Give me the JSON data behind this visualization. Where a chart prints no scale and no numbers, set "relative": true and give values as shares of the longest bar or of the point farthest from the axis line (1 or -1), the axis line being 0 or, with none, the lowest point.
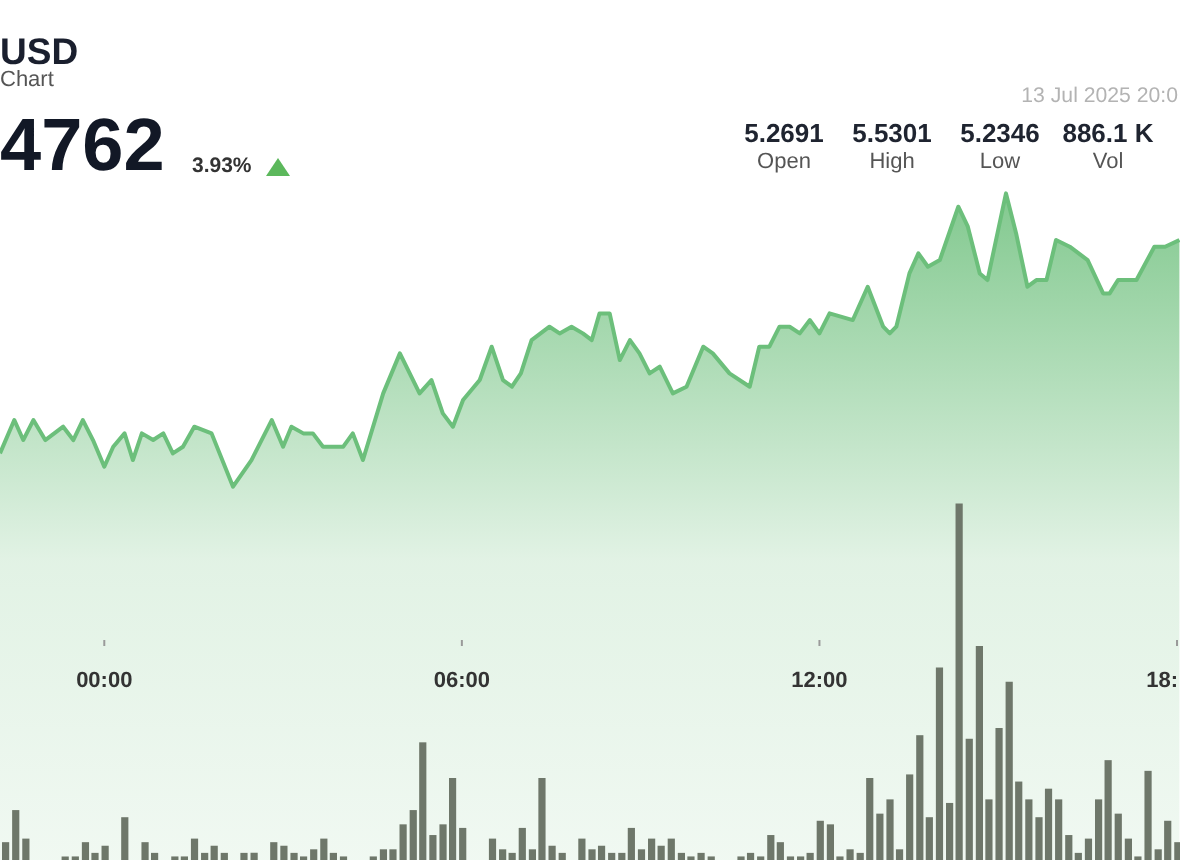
{
  "chart_data": {
    "type": "area",
    "title": "USD",
    "subtitle": "Chart",
    "annotations": [
      "4762",
      "3.93%",
      "13 Jul 2025 20:0",
      "5.2691",
      "Open",
      "5.5301",
      "High",
      "5.2346",
      "Low",
      "886.1 K",
      "Vol"
    ],
    "relative": true,
    "xlim": [
      -1.75,
      18.05
    ],
    "xticks": [
      {
        "value": 0,
        "label": "00:00"
      },
      {
        "value": 6,
        "label": "06:00"
      },
      {
        "value": 12,
        "label": "12:00"
      },
      {
        "value": 18,
        "label": "18:"
      }
    ],
    "series": [
      {
        "color": "#6cbf7b",
        "x": [
          -1.75,
          -1.51,
          -1.36,
          -1.19,
          -0.99,
          -0.69,
          -0.52,
          -0.36,
          -0.19,
          0,
          0.15,
          0.34,
          0.48,
          0.63,
          0.82,
          0.99,
          1.15,
          1.32,
          1.51,
          1.8,
          2.16,
          2.47,
          2.81,
          3,
          3.14,
          3.34,
          3.5,
          3.67,
          3.84,
          4.01,
          4.17,
          4.34,
          4.68,
          4.96,
          5.29,
          5.49,
          5.68,
          5.85,
          6.02,
          6.3,
          6.5,
          6.69,
          6.84,
          6.99,
          7.17,
          7.47,
          7.64,
          7.84,
          8.03,
          8.18,
          8.31,
          8.48,
          8.65,
          8.82,
          8.98,
          9.15,
          9.32,
          9.54,
          9.77,
          10.05,
          10.21,
          10.49,
          10.83,
          10.99,
          11.16,
          11.33,
          11.5,
          11.67,
          11.84,
          12,
          12.17,
          12.56,
          12.81,
          13.07,
          13.18,
          13.29,
          13.51,
          13.66,
          13.82,
          14.02,
          14.33,
          14.49,
          14.69,
          14.82,
          15.13,
          15.3,
          15.49,
          15.64,
          15.81,
          15.97,
          16.2,
          16.5,
          16.76,
          16.87,
          17.01,
          17.15,
          17.32,
          17.62,
          17.8,
          18.04
        ],
        "values": [
          0.61,
          0.66,
          0.63,
          0.66,
          0.63,
          0.65,
          0.63,
          0.66,
          0.63,
          0.59,
          0.62,
          0.64,
          0.6,
          0.64,
          0.63,
          0.64,
          0.61,
          0.62,
          0.65,
          0.64,
          0.56,
          0.6,
          0.66,
          0.62,
          0.65,
          0.64,
          0.64,
          0.62,
          0.62,
          0.62,
          0.64,
          0.6,
          0.7,
          0.76,
          0.7,
          0.72,
          0.67,
          0.65,
          0.69,
          0.72,
          0.77,
          0.72,
          0.71,
          0.73,
          0.78,
          0.8,
          0.79,
          0.8,
          0.79,
          0.78,
          0.82,
          0.82,
          0.75,
          0.78,
          0.76,
          0.73,
          0.74,
          0.7,
          0.71,
          0.77,
          0.76,
          0.73,
          0.71,
          0.77,
          0.77,
          0.8,
          0.8,
          0.79,
          0.81,
          0.79,
          0.82,
          0.81,
          0.86,
          0.8,
          0.79,
          0.8,
          0.88,
          0.91,
          0.89,
          0.9,
          0.98,
          0.95,
          0.88,
          0.87,
          1,
          0.94,
          0.86,
          0.87,
          0.87,
          0.93,
          0.92,
          0.9,
          0.85,
          0.85,
          0.87,
          0.87,
          0.87,
          0.92,
          0.92,
          0.93
        ]
      },
      {
        "type": "bar",
        "axis": "y2",
        "color": "#6e776a",
        "x": [
          -1.67,
          -1.5,
          -1.33,
          -1.17,
          -1,
          -0.83,
          -0.67,
          -0.5,
          -0.33,
          -0.17,
          0,
          0.17,
          0.33,
          0.5,
          0.67,
          0.83,
          1,
          1.17,
          1.33,
          1.5,
          1.67,
          1.83,
          2,
          2.17,
          2.33,
          2.5,
          2.67,
          2.83,
          3,
          3.17,
          3.33,
          3.5,
          3.67,
          3.83,
          4,
          4.17,
          4.33,
          4.5,
          4.67,
          4.83,
          5,
          5.17,
          5.33,
          5.5,
          5.67,
          5.83,
          6,
          6.17,
          6.33,
          6.5,
          6.67,
          6.83,
          7,
          7.17,
          7.33,
          7.5,
          7.67,
          7.83,
          8,
          8.17,
          8.33,
          8.5,
          8.67,
          8.83,
          9,
          9.17,
          9.33,
          9.5,
          9.67,
          9.83,
          10,
          10.17,
          10.33,
          10.5,
          10.67,
          10.83,
          11,
          11.17,
          11.33,
          11.5,
          11.67,
          11.83,
          12,
          12.17,
          12.33,
          12.5,
          12.67,
          12.83,
          13,
          13.17,
          13.33,
          13.5,
          13.67,
          13.83,
          14,
          14.17,
          14.33,
          14.5,
          14.67,
          14.83,
          15,
          15.17,
          15.33,
          15.5,
          15.67,
          15.83,
          16,
          16.17,
          16.33,
          16.5,
          16.67,
          16.83,
          17,
          17.17,
          17.33,
          17.5,
          17.67,
          17.83,
          18
        ],
        "values": [
          0.05,
          0.14,
          0.06,
          null,
          null,
          null,
          0.01,
          0.01,
          0.05,
          0.02,
          0.04,
          null,
          0.12,
          null,
          0.05,
          0.02,
          null,
          0.01,
          0.01,
          0.06,
          0.02,
          0.04,
          0.02,
          null,
          0.02,
          0.02,
          null,
          0.05,
          0.04,
          0.02,
          0.01,
          0.03,
          0.06,
          0.02,
          0.01,
          null,
          null,
          0.01,
          0.03,
          0.03,
          0.1,
          0.14,
          0.33,
          0.07,
          0.1,
          0.23,
          0.09,
          null,
          null,
          0.06,
          0.03,
          0.02,
          0.09,
          0.03,
          0.23,
          0.04,
          0.02,
          null,
          0.06,
          0.03,
          0.04,
          0.02,
          0.02,
          0.09,
          0.03,
          0.06,
          0.04,
          0.06,
          0.02,
          0.01,
          0.02,
          0.01,
          null,
          null,
          0.01,
          0.02,
          0.01,
          0.07,
          0.05,
          0.01,
          0.01,
          0.02,
          0.11,
          0.1,
          0.01,
          0.03,
          0.02,
          0.23,
          0.13,
          0.17,
          0.03,
          0.24,
          0.35,
          0.12,
          0.54,
          0.16,
          1,
          0.34,
          0.6,
          0.17,
          0.37,
          0.5,
          0.22,
          0.17,
          0.12,
          0.2,
          0.17,
          0.07,
          0.02,
          0.06,
          0.17,
          0.28,
          0.13,
          0.06,
          0.01,
          0.25,
          0.03,
          0.11,
          0.05
        ]
      }
    ]
  }
}
